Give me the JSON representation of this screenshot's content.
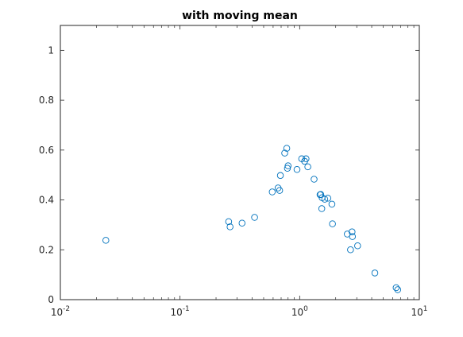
{
  "chart_data": {
    "type": "scatter",
    "title": "with moving mean",
    "xlabel": "",
    "ylabel": "",
    "xscale": "log",
    "xlim": [
      0.01,
      10
    ],
    "ylim": [
      0,
      1.1
    ],
    "grid": false,
    "x_ticks": [
      {
        "base": "10",
        "exp": "-2",
        "value": 0.01
      },
      {
        "base": "10",
        "exp": "-1",
        "value": 0.1
      },
      {
        "base": "10",
        "exp": "0",
        "value": 1
      },
      {
        "base": "10",
        "exp": "1",
        "value": 10
      }
    ],
    "y_ticks": [
      {
        "label": "0",
        "value": 0
      },
      {
        "label": "0.2",
        "value": 0.2
      },
      {
        "label": "0.4",
        "value": 0.4
      },
      {
        "label": "0.6",
        "value": 0.6
      },
      {
        "label": "0.8",
        "value": 0.8
      },
      {
        "label": "1",
        "value": 1
      }
    ],
    "marker_color": "#0072BD",
    "points": [
      {
        "x": 0.024,
        "y": 0.238
      },
      {
        "x": 0.255,
        "y": 0.313
      },
      {
        "x": 0.262,
        "y": 0.292
      },
      {
        "x": 0.33,
        "y": 0.307
      },
      {
        "x": 0.42,
        "y": 0.33
      },
      {
        "x": 0.59,
        "y": 0.432
      },
      {
        "x": 0.66,
        "y": 0.448
      },
      {
        "x": 0.68,
        "y": 0.438
      },
      {
        "x": 0.69,
        "y": 0.498
      },
      {
        "x": 0.75,
        "y": 0.588
      },
      {
        "x": 0.78,
        "y": 0.607
      },
      {
        "x": 0.79,
        "y": 0.527
      },
      {
        "x": 0.8,
        "y": 0.537
      },
      {
        "x": 0.95,
        "y": 0.522
      },
      {
        "x": 1.04,
        "y": 0.565
      },
      {
        "x": 1.1,
        "y": 0.555
      },
      {
        "x": 1.13,
        "y": 0.565
      },
      {
        "x": 1.17,
        "y": 0.533
      },
      {
        "x": 1.32,
        "y": 0.483
      },
      {
        "x": 1.48,
        "y": 0.421
      },
      {
        "x": 1.5,
        "y": 0.422
      },
      {
        "x": 1.53,
        "y": 0.365
      },
      {
        "x": 1.54,
        "y": 0.409
      },
      {
        "x": 1.62,
        "y": 0.403
      },
      {
        "x": 1.72,
        "y": 0.407
      },
      {
        "x": 1.86,
        "y": 0.383
      },
      {
        "x": 1.88,
        "y": 0.304
      },
      {
        "x": 2.5,
        "y": 0.263
      },
      {
        "x": 2.66,
        "y": 0.2
      },
      {
        "x": 2.74,
        "y": 0.272
      },
      {
        "x": 2.76,
        "y": 0.253
      },
      {
        "x": 3.05,
        "y": 0.216
      },
      {
        "x": 4.25,
        "y": 0.107
      },
      {
        "x": 6.4,
        "y": 0.048
      },
      {
        "x": 6.6,
        "y": 0.04
      }
    ]
  }
}
